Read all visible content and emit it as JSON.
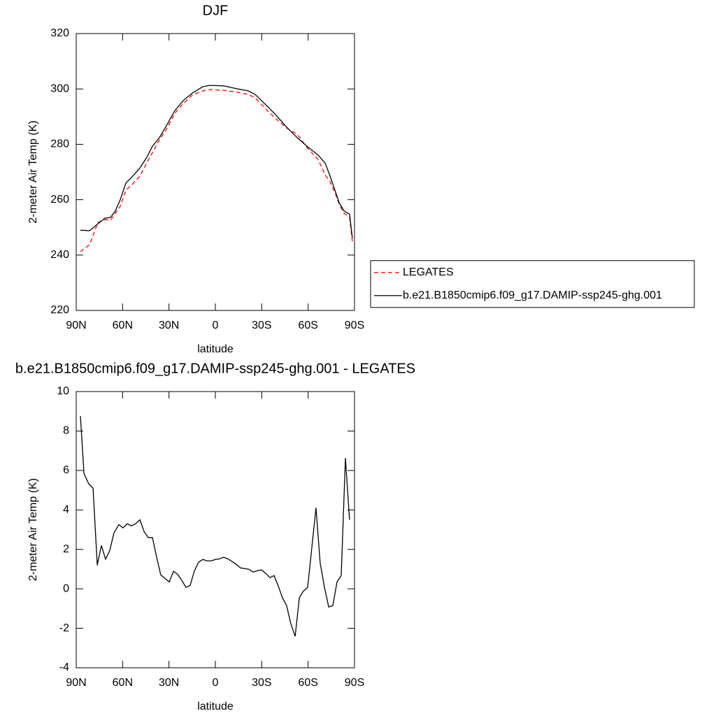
{
  "chart_data": [
    {
      "type": "line",
      "title": "DJF",
      "xlabel": "latitude",
      "ylabel": "2-meter Air Temp (K)",
      "x": [
        87.3,
        81.4,
        76,
        71.5,
        67.8,
        64.7,
        61.5,
        57.9,
        53.4,
        48.8,
        44.3,
        40.7,
        36.2,
        31.7,
        26.2,
        20.8,
        14.9,
        8.1,
        3.6,
        -5.4,
        -14.5,
        -21.3,
        -25.8,
        -32.6,
        -39.3,
        -46.1,
        -52.9,
        -59.7,
        -66.5,
        -71,
        -74.2,
        -77.8,
        -80.1,
        -83.2,
        -86.8,
        -88.6
      ],
      "series": [
        {
          "name": "LEGATES",
          "color": "#ff0000",
          "dash": "dashed",
          "values": [
            241.2,
            243.7,
            251.8,
            252.8,
            252.6,
            255.1,
            257.6,
            263.4,
            265.7,
            268.5,
            273.3,
            277,
            281.6,
            285.4,
            291.2,
            294.7,
            297.8,
            299.3,
            299.8,
            299.5,
            298.8,
            298,
            296.8,
            292.7,
            289.2,
            285.9,
            283.6,
            278.6,
            274.5,
            269,
            266.5,
            262,
            258.4,
            255.1,
            253.8,
            245
          ]
        },
        {
          "name": "b.e21.B1850cmip6.f09_g17.DAMIP-ssp245-ghg.001",
          "color": "#000000",
          "dash": "solid",
          "values": [
            249,
            248.8,
            251.3,
            253.3,
            253.6,
            255.9,
            260,
            266,
            268.5,
            271.5,
            275.3,
            279.3,
            282.4,
            286.7,
            292.2,
            295.8,
            298.5,
            300.8,
            301.3,
            301.1,
            300,
            299.3,
            298,
            294.3,
            290.5,
            286.2,
            282.4,
            279.1,
            276.1,
            273.2,
            268.5,
            262.7,
            258.9,
            255.9,
            254.8,
            246.2
          ]
        }
      ],
      "xlim": [
        90,
        -90
      ],
      "xticks": [
        {
          "value": 90,
          "label": "90N"
        },
        {
          "value": 60,
          "label": "60N"
        },
        {
          "value": 30,
          "label": "30N"
        },
        0,
        {
          "value": -30,
          "label": "30S"
        },
        {
          "value": -60,
          "label": "60S"
        },
        {
          "value": -90,
          "label": "90S"
        }
      ],
      "ylim": [
        220,
        320
      ],
      "yticks": [
        220,
        240,
        260,
        280,
        300,
        320
      ],
      "legend": "right"
    },
    {
      "type": "line",
      "title": "b.e21.B1850cmip6.f09_g17.DAMIP-ssp245-ghg.001 - LEGATES",
      "xlabel": "latitude",
      "ylabel": "2-meter Air Temp (K)",
      "x": [
        87.3,
        85,
        81.9,
        79.1,
        76.4,
        73.7,
        71,
        68.3,
        65.6,
        62.4,
        59.7,
        57,
        54.3,
        51.6,
        48.8,
        46.1,
        43.4,
        40.7,
        38,
        35.3,
        32.6,
        29.8,
        27.1,
        24.4,
        21.7,
        19,
        16.3,
        13.6,
        10.9,
        8.1,
        5.4,
        2.7,
        0,
        -2.7,
        -5.4,
        -8.1,
        -10.9,
        -13.6,
        -16.3,
        -19,
        -21.7,
        -24.4,
        -27.1,
        -29.8,
        -32.6,
        -35.3,
        -38,
        -40.7,
        -43.4,
        -46.1,
        -48.8,
        -51.6,
        -54.3,
        -57,
        -59.7,
        -65.1,
        -67.8,
        -70.6,
        -73.3,
        -76,
        -78.7,
        -81.4,
        -84.1,
        -86.8
      ],
      "values": [
        8.76,
        5.85,
        5.32,
        5.1,
        1.2,
        2.2,
        1.5,
        1.95,
        2.84,
        3.26,
        3.09,
        3.3,
        3.19,
        3.3,
        3.5,
        2.9,
        2.6,
        2.6,
        1.6,
        0.71,
        0.53,
        0.35,
        0.89,
        0.74,
        0.43,
        0.07,
        0.18,
        0.89,
        1.35,
        1.49,
        1.42,
        1.42,
        1.49,
        1.52,
        1.6,
        1.52,
        1.38,
        1.24,
        1.06,
        1.03,
        0.99,
        0.85,
        0.92,
        0.96,
        0.78,
        0.57,
        0.67,
        0.14,
        -0.46,
        -0.85,
        -1.77,
        -2.41,
        -0.46,
        -0.11,
        0.07,
        4.11,
        1.31,
        0.07,
        -0.92,
        -0.85,
        0.35,
        0.67,
        6.63,
        3.5
      ],
      "color": "#000000",
      "xlim": [
        90,
        -90
      ],
      "xticks": [
        {
          "value": 90,
          "label": "90N"
        },
        {
          "value": 60,
          "label": "60N"
        },
        {
          "value": 30,
          "label": "30N"
        },
        0,
        {
          "value": -30,
          "label": "30S"
        },
        {
          "value": -60,
          "label": "60S"
        },
        {
          "value": -90,
          "label": "90S"
        }
      ],
      "ylim": [
        -4,
        10
      ],
      "yticks": [
        -4,
        -2,
        0,
        2,
        4,
        6,
        8,
        10
      ]
    }
  ]
}
